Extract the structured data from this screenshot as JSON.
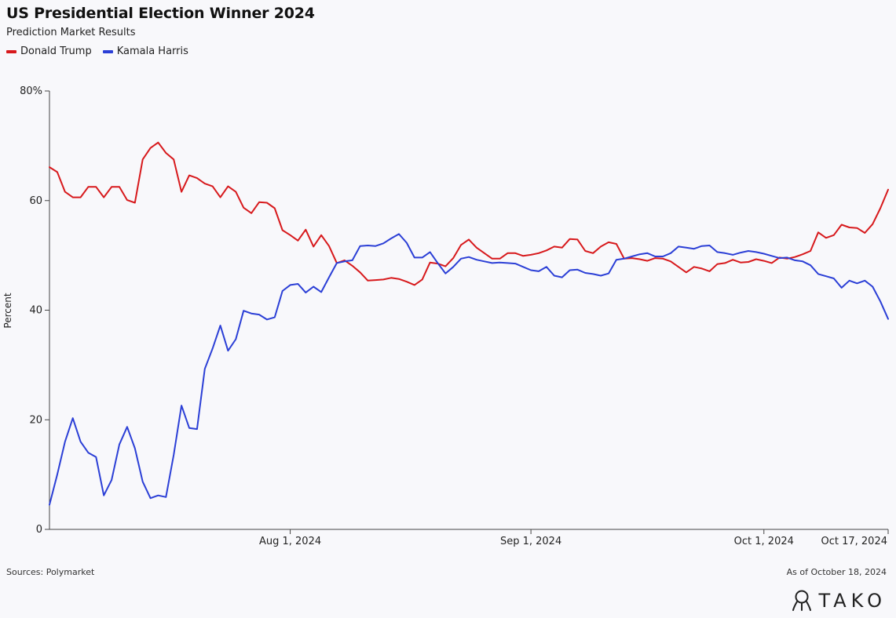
{
  "title": "US Presidential Election Winner 2024",
  "subtitle": "Prediction Market Results",
  "sources": "Sources: Polymarket",
  "as_of": "As of October 18, 2024",
  "brand": "TAKO",
  "brand_icon": "tako-octopus-icon",
  "colors": {
    "trump": "#d7191c",
    "harris": "#2b3fd6",
    "axis": "#444444"
  },
  "chart_data": {
    "type": "line",
    "ylabel": "Percent",
    "xlabel": "",
    "ylim": [
      0,
      80
    ],
    "yticks": [
      {
        "value": 0,
        "label": "0"
      },
      {
        "value": 20,
        "label": "20"
      },
      {
        "value": 40,
        "label": "40"
      },
      {
        "value": 60,
        "label": "60"
      },
      {
        "value": 80,
        "label": "80%"
      }
    ],
    "xlim": [
      "2024-07-01",
      "2024-10-17"
    ],
    "xticks": [
      {
        "date": "2024-08-01",
        "label": "Aug 1, 2024"
      },
      {
        "date": "2024-09-01",
        "label": "Sep 1, 2024"
      },
      {
        "date": "2024-10-01",
        "label": "Oct 1, 2024"
      },
      {
        "date": "2024-10-17",
        "label": "Oct 17, 2024"
      }
    ],
    "grid": false,
    "legend": "top-left",
    "series": [
      {
        "name": "Donald Trump",
        "color": "#d7191c",
        "points": [
          [
            "2024-07-01",
            66.1
          ],
          [
            "2024-07-02",
            65.2
          ],
          [
            "2024-07-03",
            61.6
          ],
          [
            "2024-07-04",
            60.6
          ],
          [
            "2024-07-05",
            60.6
          ],
          [
            "2024-07-06",
            62.5
          ],
          [
            "2024-07-07",
            62.5
          ],
          [
            "2024-07-08",
            60.6
          ],
          [
            "2024-07-09",
            62.5
          ],
          [
            "2024-07-10",
            62.5
          ],
          [
            "2024-07-11",
            60.1
          ],
          [
            "2024-07-12",
            59.6
          ],
          [
            "2024-07-13",
            67.5
          ],
          [
            "2024-07-14",
            69.6
          ],
          [
            "2024-07-15",
            70.6
          ],
          [
            "2024-07-16",
            68.7
          ],
          [
            "2024-07-17",
            67.5
          ],
          [
            "2024-07-18",
            61.6
          ],
          [
            "2024-07-19",
            64.6
          ],
          [
            "2024-07-20",
            64.1
          ],
          [
            "2024-07-21",
            63.1
          ],
          [
            "2024-07-22",
            62.6
          ],
          [
            "2024-07-23",
            60.6
          ],
          [
            "2024-07-24",
            62.6
          ],
          [
            "2024-07-25",
            61.6
          ],
          [
            "2024-07-26",
            58.7
          ],
          [
            "2024-07-27",
            57.7
          ],
          [
            "2024-07-28",
            59.7
          ],
          [
            "2024-07-29",
            59.6
          ],
          [
            "2024-07-30",
            58.6
          ],
          [
            "2024-07-31",
            54.6
          ],
          [
            "2024-08-01",
            53.7
          ],
          [
            "2024-08-02",
            52.7
          ],
          [
            "2024-08-03",
            54.7
          ],
          [
            "2024-08-04",
            51.6
          ],
          [
            "2024-08-05",
            53.7
          ],
          [
            "2024-08-06",
            51.7
          ],
          [
            "2024-08-07",
            48.6
          ],
          [
            "2024-08-08",
            49.1
          ],
          [
            "2024-08-09",
            48.1
          ],
          [
            "2024-08-10",
            46.9
          ],
          [
            "2024-08-11",
            45.4
          ],
          [
            "2024-08-12",
            45.5
          ],
          [
            "2024-08-13",
            45.6
          ],
          [
            "2024-08-14",
            45.9
          ],
          [
            "2024-08-15",
            45.7
          ],
          [
            "2024-08-16",
            45.2
          ],
          [
            "2024-08-17",
            44.6
          ],
          [
            "2024-08-18",
            45.6
          ],
          [
            "2024-08-19",
            48.7
          ],
          [
            "2024-08-20",
            48.5
          ],
          [
            "2024-08-21",
            48.0
          ],
          [
            "2024-08-22",
            49.5
          ],
          [
            "2024-08-23",
            51.9
          ],
          [
            "2024-08-24",
            52.9
          ],
          [
            "2024-08-25",
            51.4
          ],
          [
            "2024-08-26",
            50.4
          ],
          [
            "2024-08-27",
            49.4
          ],
          [
            "2024-08-28",
            49.4
          ],
          [
            "2024-08-29",
            50.4
          ],
          [
            "2024-08-30",
            50.4
          ],
          [
            "2024-08-31",
            49.9
          ],
          [
            "2024-09-01",
            50.1
          ],
          [
            "2024-09-02",
            50.4
          ],
          [
            "2024-09-03",
            50.9
          ],
          [
            "2024-09-04",
            51.6
          ],
          [
            "2024-09-05",
            51.4
          ],
          [
            "2024-09-06",
            53.0
          ],
          [
            "2024-09-07",
            52.9
          ],
          [
            "2024-09-08",
            50.8
          ],
          [
            "2024-09-09",
            50.4
          ],
          [
            "2024-09-10",
            51.6
          ],
          [
            "2024-09-11",
            52.4
          ],
          [
            "2024-09-12",
            52.1
          ],
          [
            "2024-09-13",
            49.4
          ],
          [
            "2024-09-14",
            49.5
          ],
          [
            "2024-09-15",
            49.3
          ],
          [
            "2024-09-16",
            49.0
          ],
          [
            "2024-09-17",
            49.5
          ],
          [
            "2024-09-18",
            49.4
          ],
          [
            "2024-09-19",
            48.9
          ],
          [
            "2024-09-20",
            47.9
          ],
          [
            "2024-09-21",
            46.9
          ],
          [
            "2024-09-22",
            47.9
          ],
          [
            "2024-09-23",
            47.6
          ],
          [
            "2024-09-24",
            47.1
          ],
          [
            "2024-09-25",
            48.4
          ],
          [
            "2024-09-26",
            48.6
          ],
          [
            "2024-09-27",
            49.2
          ],
          [
            "2024-09-28",
            48.7
          ],
          [
            "2024-09-29",
            48.8
          ],
          [
            "2024-09-30",
            49.3
          ],
          [
            "2024-10-01",
            49.0
          ],
          [
            "2024-10-02",
            48.6
          ],
          [
            "2024-10-03",
            49.6
          ],
          [
            "2024-10-04",
            49.4
          ],
          [
            "2024-10-05",
            49.7
          ],
          [
            "2024-10-06",
            50.2
          ],
          [
            "2024-10-07",
            50.8
          ],
          [
            "2024-10-08",
            54.2
          ],
          [
            "2024-10-09",
            53.2
          ],
          [
            "2024-10-10",
            53.7
          ],
          [
            "2024-10-11",
            55.6
          ],
          [
            "2024-10-12",
            55.1
          ],
          [
            "2024-10-13",
            55.0
          ],
          [
            "2024-10-14",
            54.1
          ],
          [
            "2024-10-15",
            55.7
          ],
          [
            "2024-10-16",
            58.6
          ],
          [
            "2024-10-17",
            62.0
          ]
        ]
      },
      {
        "name": "Kamala Harris",
        "color": "#2b3fd6",
        "points": [
          [
            "2024-07-01",
            4.5
          ],
          [
            "2024-07-02",
            10.0
          ],
          [
            "2024-07-03",
            16.0
          ],
          [
            "2024-07-04",
            20.3
          ],
          [
            "2024-07-05",
            16.0
          ],
          [
            "2024-07-06",
            14.0
          ],
          [
            "2024-07-07",
            13.2
          ],
          [
            "2024-07-08",
            6.2
          ],
          [
            "2024-07-09",
            9.0
          ],
          [
            "2024-07-10",
            15.5
          ],
          [
            "2024-07-11",
            18.7
          ],
          [
            "2024-07-12",
            14.8
          ],
          [
            "2024-07-13",
            8.7
          ],
          [
            "2024-07-14",
            5.7
          ],
          [
            "2024-07-15",
            6.2
          ],
          [
            "2024-07-16",
            5.9
          ],
          [
            "2024-07-17",
            13.6
          ],
          [
            "2024-07-18",
            22.6
          ],
          [
            "2024-07-19",
            18.5
          ],
          [
            "2024-07-20",
            18.3
          ],
          [
            "2024-07-21",
            29.3
          ],
          [
            "2024-07-22",
            33.0
          ],
          [
            "2024-07-23",
            37.2
          ],
          [
            "2024-07-24",
            32.6
          ],
          [
            "2024-07-25",
            34.7
          ],
          [
            "2024-07-26",
            39.9
          ],
          [
            "2024-07-27",
            39.4
          ],
          [
            "2024-07-28",
            39.2
          ],
          [
            "2024-07-29",
            38.3
          ],
          [
            "2024-07-30",
            38.7
          ],
          [
            "2024-07-31",
            43.5
          ],
          [
            "2024-08-01",
            44.6
          ],
          [
            "2024-08-02",
            44.8
          ],
          [
            "2024-08-03",
            43.2
          ],
          [
            "2024-08-04",
            44.3
          ],
          [
            "2024-08-05",
            43.3
          ],
          [
            "2024-08-06",
            46.0
          ],
          [
            "2024-08-07",
            48.6
          ],
          [
            "2024-08-08",
            48.9
          ],
          [
            "2024-08-09",
            49.1
          ],
          [
            "2024-08-10",
            51.7
          ],
          [
            "2024-08-11",
            51.8
          ],
          [
            "2024-08-12",
            51.7
          ],
          [
            "2024-08-13",
            52.2
          ],
          [
            "2024-08-14",
            53.1
          ],
          [
            "2024-08-15",
            53.9
          ],
          [
            "2024-08-16",
            52.3
          ],
          [
            "2024-08-17",
            49.6
          ],
          [
            "2024-08-18",
            49.6
          ],
          [
            "2024-08-19",
            50.6
          ],
          [
            "2024-08-20",
            48.6
          ],
          [
            "2024-08-21",
            46.7
          ],
          [
            "2024-08-22",
            47.9
          ],
          [
            "2024-08-23",
            49.4
          ],
          [
            "2024-08-24",
            49.7
          ],
          [
            "2024-08-25",
            49.2
          ],
          [
            "2024-08-26",
            48.9
          ],
          [
            "2024-08-27",
            48.6
          ],
          [
            "2024-08-28",
            48.7
          ],
          [
            "2024-08-29",
            48.6
          ],
          [
            "2024-08-30",
            48.5
          ],
          [
            "2024-08-31",
            47.9
          ],
          [
            "2024-09-01",
            47.3
          ],
          [
            "2024-09-02",
            47.1
          ],
          [
            "2024-09-03",
            47.9
          ],
          [
            "2024-09-04",
            46.3
          ],
          [
            "2024-09-05",
            46.0
          ],
          [
            "2024-09-06",
            47.3
          ],
          [
            "2024-09-07",
            47.4
          ],
          [
            "2024-09-08",
            46.8
          ],
          [
            "2024-09-09",
            46.6
          ],
          [
            "2024-09-10",
            46.3
          ],
          [
            "2024-09-11",
            46.7
          ],
          [
            "2024-09-12",
            49.2
          ],
          [
            "2024-09-13",
            49.4
          ],
          [
            "2024-09-14",
            49.8
          ],
          [
            "2024-09-15",
            50.2
          ],
          [
            "2024-09-16",
            50.4
          ],
          [
            "2024-09-17",
            49.8
          ],
          [
            "2024-09-18",
            49.8
          ],
          [
            "2024-09-19",
            50.4
          ],
          [
            "2024-09-20",
            51.6
          ],
          [
            "2024-09-21",
            51.4
          ],
          [
            "2024-09-22",
            51.2
          ],
          [
            "2024-09-23",
            51.7
          ],
          [
            "2024-09-24",
            51.8
          ],
          [
            "2024-09-25",
            50.6
          ],
          [
            "2024-09-26",
            50.4
          ],
          [
            "2024-09-27",
            50.1
          ],
          [
            "2024-09-28",
            50.5
          ],
          [
            "2024-09-29",
            50.8
          ],
          [
            "2024-09-30",
            50.6
          ],
          [
            "2024-10-01",
            50.3
          ],
          [
            "2024-10-02",
            49.9
          ],
          [
            "2024-10-03",
            49.5
          ],
          [
            "2024-10-04",
            49.6
          ],
          [
            "2024-10-05",
            49.1
          ],
          [
            "2024-10-06",
            48.9
          ],
          [
            "2024-10-07",
            48.2
          ],
          [
            "2024-10-08",
            46.6
          ],
          [
            "2024-10-09",
            46.2
          ],
          [
            "2024-10-10",
            45.8
          ],
          [
            "2024-10-11",
            44.1
          ],
          [
            "2024-10-12",
            45.4
          ],
          [
            "2024-10-13",
            44.9
          ],
          [
            "2024-10-14",
            45.4
          ],
          [
            "2024-10-15",
            44.3
          ],
          [
            "2024-10-16",
            41.6
          ],
          [
            "2024-10-17",
            38.4
          ]
        ]
      }
    ]
  }
}
